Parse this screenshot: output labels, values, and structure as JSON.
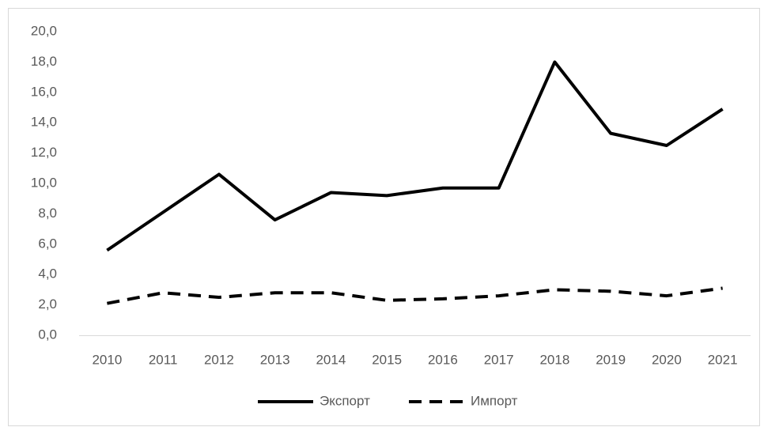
{
  "chart_data": {
    "type": "line",
    "categories": [
      "2010",
      "2011",
      "2012",
      "2013",
      "2014",
      "2015",
      "2016",
      "2017",
      "2018",
      "2019",
      "2020",
      "2021"
    ],
    "series": [
      {
        "name": "Экспорт",
        "color": "#000000",
        "line_style": "solid",
        "values": [
          5.6,
          8.1,
          10.6,
          7.6,
          9.4,
          9.2,
          9.7,
          9.7,
          18.0,
          13.3,
          12.5,
          14.9
        ]
      },
      {
        "name": "Импорт",
        "color": "#000000",
        "line_style": "dashed",
        "values": [
          2.1,
          2.8,
          2.5,
          2.8,
          2.8,
          2.3,
          2.4,
          2.6,
          3.0,
          2.9,
          2.6,
          3.1
        ]
      }
    ],
    "ylim": [
      0,
      20
    ],
    "yticks": [
      {
        "value": 0,
        "label": "0,0"
      },
      {
        "value": 2,
        "label": "2,0"
      },
      {
        "value": 4,
        "label": "4,0"
      },
      {
        "value": 6,
        "label": "6,0"
      },
      {
        "value": 8,
        "label": "8,0"
      },
      {
        "value": 10,
        "label": "10,0"
      },
      {
        "value": 12,
        "label": "12,0"
      },
      {
        "value": 14,
        "label": "14,0"
      },
      {
        "value": 16,
        "label": "16,0"
      },
      {
        "value": 18,
        "label": "18,0"
      },
      {
        "value": 20,
        "label": "20,0"
      }
    ],
    "grid": false,
    "legend": "bottom"
  }
}
